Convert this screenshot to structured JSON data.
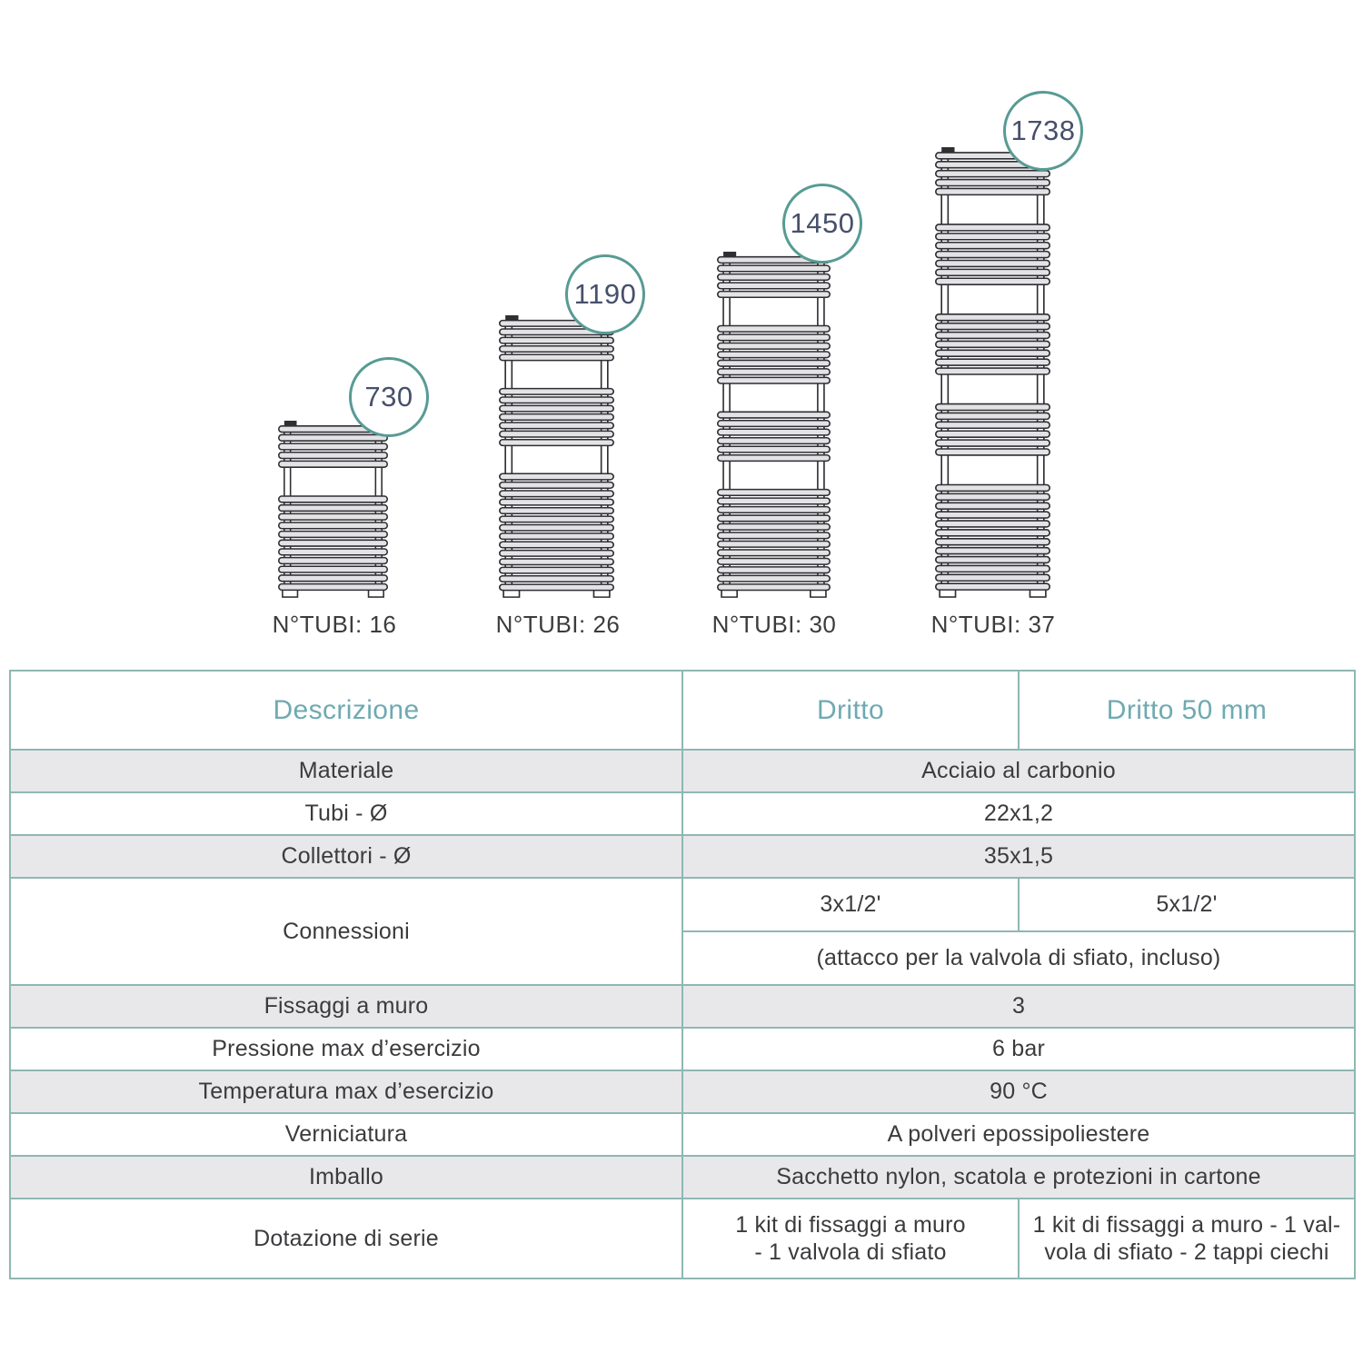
{
  "figures": {
    "items": [
      {
        "height_mm": "730",
        "tubes_label": "N°TUBI: 16",
        "tube_groups": [
          5,
          11
        ]
      },
      {
        "height_mm": "1190",
        "tubes_label": "N°TUBI: 26",
        "tube_groups": [
          5,
          7,
          14
        ]
      },
      {
        "height_mm": "1450",
        "tubes_label": "N°TUBI: 30",
        "tube_groups": [
          5,
          7,
          6,
          12
        ]
      },
      {
        "height_mm": "1738",
        "tubes_label": "N°TUBI: 37",
        "tube_groups": [
          5,
          7,
          7,
          6,
          12
        ]
      }
    ]
  },
  "table": {
    "headers": {
      "descrizione": "Descrizione",
      "dritto": "Dritto",
      "dritto50": "Dritto 50 mm"
    },
    "rows": [
      {
        "label": "Materiale",
        "value": "Acciaio al carbonio"
      },
      {
        "label": "Tubi - Ø",
        "value": "22x1,2"
      },
      {
        "label": "Collettori - Ø",
        "value": "35x1,5"
      },
      {
        "label": "Connessioni",
        "dritto": "3x1/2'",
        "dritto50": "5x1/2'",
        "note": "(attacco per la valvola di sfiato, incluso)"
      },
      {
        "label": "Fissaggi a muro",
        "value": "3"
      },
      {
        "label": "Pressione max d’esercizio",
        "value": "6 bar"
      },
      {
        "label": "Temperatura max d’esercizio",
        "value": "90 °C"
      },
      {
        "label": "Verniciatura",
        "value": "A polveri epossipoliestere"
      },
      {
        "label": "Imballo",
        "value": "Sacchetto nylon, scatola e protezioni in cartone"
      },
      {
        "label": "Dotazione di serie",
        "dritto_lines": [
          "1 kit di fissaggi a muro",
          "- 1 valvola di sfiato"
        ],
        "dritto50_lines": [
          "1 kit di fissaggi a muro - 1 val-",
          "vola di sfiato - 2 tappi ciechi"
        ]
      }
    ]
  },
  "colors": {
    "table_border": "#8fb7b4",
    "header_text": "#6faab1",
    "row_gray": "#e8e8ea",
    "badge_ring": "#579b94",
    "badge_text": "#47506b",
    "diagram_line": "#2e2e33",
    "body_text": "#3b3b3e"
  }
}
